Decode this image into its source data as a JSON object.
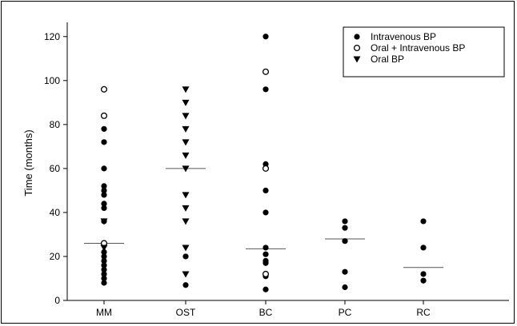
{
  "chart_data": {
    "type": "scatter",
    "ylabel": "Time (months)",
    "xlabel": "",
    "ylim": [
      0,
      125
    ],
    "yticks": [
      0,
      20,
      40,
      60,
      80,
      100,
      120
    ],
    "categories": [
      "MM",
      "OST",
      "BC",
      "PC",
      "RC"
    ],
    "grid": false,
    "legend_position": "top-right",
    "series": [
      {
        "name": "Intravenous BP",
        "marker": "filled-circle",
        "points": [
          {
            "category": "MM",
            "values": [
              78,
              72,
              60,
              52,
              50,
              48,
              44,
              42,
              36,
              22,
              20,
              18,
              16,
              14,
              12,
              10,
              8
            ]
          },
          {
            "category": "OST",
            "values": [
              20,
              7
            ]
          },
          {
            "category": "BC",
            "values": [
              120,
              96,
              62,
              50,
              40,
              24,
              21,
              18,
              17,
              12,
              11,
              5
            ]
          },
          {
            "category": "PC",
            "values": [
              36,
              33,
              27,
              13,
              6
            ]
          },
          {
            "category": "RC",
            "values": [
              36,
              24,
              12,
              9
            ]
          }
        ]
      },
      {
        "name": "Oral + Intravenous BP",
        "marker": "open-circle",
        "points": [
          {
            "category": "MM",
            "values": [
              96,
              84,
              26
            ]
          },
          {
            "category": "BC",
            "values": [
              104,
              60,
              12
            ]
          }
        ]
      },
      {
        "name": "Oral BP",
        "marker": "filled-triangle-down",
        "points": [
          {
            "category": "MM",
            "values": [
              36,
              24
            ]
          },
          {
            "category": "OST",
            "values": [
              96,
              90,
              84,
              78,
              72,
              66,
              60,
              48,
              42,
              36,
              24,
              12
            ]
          }
        ]
      }
    ],
    "medians": [
      {
        "category": "MM",
        "value": 26
      },
      {
        "category": "OST",
        "value": 60
      },
      {
        "category": "BC",
        "value": 23.5
      },
      {
        "category": "PC",
        "value": 28
      },
      {
        "category": "RC",
        "value": 15
      }
    ]
  }
}
